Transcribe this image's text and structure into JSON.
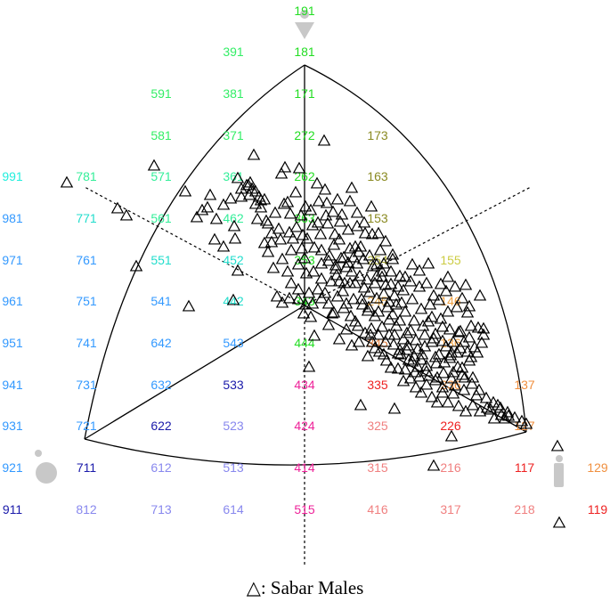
{
  "chart_data": {
    "type": "scatter",
    "title": "",
    "legend": {
      "symbol": "open triangle",
      "text": "△: Sabar Males",
      "placement": "bottom-center"
    },
    "grid_labels": [
      {
        "t": "191",
        "c": "#22dd22"
      },
      {
        "t": "391",
        "c": "#33ee66"
      },
      {
        "t": "181",
        "c": "#22dd22"
      },
      {
        "t": "591",
        "c": "#33ee66"
      },
      {
        "t": "381",
        "c": "#33ee66"
      },
      {
        "t": "171",
        "c": "#22dd22"
      },
      {
        "t": "581",
        "c": "#33ee66"
      },
      {
        "t": "371",
        "c": "#33ee66"
      },
      {
        "t": "272",
        "c": "#22dd22"
      },
      {
        "t": "173",
        "c": "#8a8a22"
      },
      {
        "t": "991",
        "c": "#22eedd"
      },
      {
        "t": "781",
        "c": "#33ee99"
      },
      {
        "t": "571",
        "c": "#33ee99"
      },
      {
        "t": "361",
        "c": "#33ee99"
      },
      {
        "t": "262",
        "c": "#22dd22"
      },
      {
        "t": "163",
        "c": "#8a8a22"
      },
      {
        "t": "981",
        "c": "#3399ff"
      },
      {
        "t": "771",
        "c": "#22ddcc"
      },
      {
        "t": "561",
        "c": "#33ee99"
      },
      {
        "t": "462",
        "c": "#33ee99"
      },
      {
        "t": "363",
        "c": "#22dd22"
      },
      {
        "t": "153",
        "c": "#8a8a22"
      },
      {
        "t": "971",
        "c": "#3399ff"
      },
      {
        "t": "761",
        "c": "#3399ff"
      },
      {
        "t": "551",
        "c": "#22ddcc"
      },
      {
        "t": "452",
        "c": "#22ddcc"
      },
      {
        "t": "353",
        "c": "#22dd22"
      },
      {
        "t": "254",
        "c": "#aaaa33"
      },
      {
        "t": "155",
        "c": "#cccc44"
      },
      {
        "t": "961",
        "c": "#3399ff"
      },
      {
        "t": "751",
        "c": "#3399ff"
      },
      {
        "t": "541",
        "c": "#3399ff"
      },
      {
        "t": "442",
        "c": "#22ddcc"
      },
      {
        "t": "343",
        "c": "#22dd22"
      },
      {
        "t": "245",
        "c": "#e0a040"
      },
      {
        "t": "146",
        "c": "#f0a040"
      },
      {
        "t": "951",
        "c": "#3399ff"
      },
      {
        "t": "741",
        "c": "#3399ff"
      },
      {
        "t": "642",
        "c": "#3399ff"
      },
      {
        "t": "543",
        "c": "#3399ff"
      },
      {
        "t": "444",
        "c": "#22dd22"
      },
      {
        "t": "345",
        "c": "#e08040"
      },
      {
        "t": "136",
        "c": "#f0a040"
      },
      {
        "t": "941",
        "c": "#3399ff"
      },
      {
        "t": "731",
        "c": "#3399ff"
      },
      {
        "t": "632",
        "c": "#3399ff"
      },
      {
        "t": "533",
        "c": "#1a1aaa"
      },
      {
        "t": "434",
        "c": "#ee2299"
      },
      {
        "t": "335",
        "c": "#ee2222"
      },
      {
        "t": "236",
        "c": "#f09040"
      },
      {
        "t": "137",
        "c": "#f09040"
      },
      {
        "t": "931",
        "c": "#3399ff"
      },
      {
        "t": "721",
        "c": "#3399ff"
      },
      {
        "t": "622",
        "c": "#1a1aaa"
      },
      {
        "t": "523",
        "c": "#8888ee"
      },
      {
        "t": "424",
        "c": "#ee2299"
      },
      {
        "t": "325",
        "c": "#f08080"
      },
      {
        "t": "226",
        "c": "#ee2222"
      },
      {
        "t": "127",
        "c": "#f09040"
      },
      {
        "t": "921",
        "c": "#3399ff"
      },
      {
        "t": "711",
        "c": "#1a1aaa"
      },
      {
        "t": "612",
        "c": "#8888ee"
      },
      {
        "t": "513",
        "c": "#8888ee"
      },
      {
        "t": "414",
        "c": "#ee2299"
      },
      {
        "t": "315",
        "c": "#f08080"
      },
      {
        "t": "216",
        "c": "#f08080"
      },
      {
        "t": "117",
        "c": "#ee2222"
      },
      {
        "t": "129",
        "c": "#f09040"
      },
      {
        "t": "911",
        "c": "#1a1aaa"
      },
      {
        "t": "812",
        "c": "#8888ee"
      },
      {
        "t": "713",
        "c": "#8888ee"
      },
      {
        "t": "614",
        "c": "#8888ee"
      },
      {
        "t": "515",
        "c": "#ee2299"
      },
      {
        "t": "416",
        "c": "#f08080"
      },
      {
        "t": "317",
        "c": "#f08080"
      },
      {
        "t": "218",
        "c": "#f08080"
      },
      {
        "t": "119",
        "c": "#ee2222"
      }
    ],
    "points": [
      [
        75,
        205
      ],
      [
        132,
        234
      ],
      [
        142,
        242
      ],
      [
        153,
        299
      ],
      [
        173,
        186
      ],
      [
        208,
        215
      ],
      [
        212,
        344
      ],
      [
        236,
        219
      ],
      [
        241,
        269
      ],
      [
        251,
        230
      ],
      [
        264,
        268
      ],
      [
        267,
        304
      ],
      [
        262,
        337
      ],
      [
        267,
        200
      ],
      [
        271,
        212
      ],
      [
        280,
        219
      ],
      [
        285,
        174
      ],
      [
        293,
        225
      ],
      [
        297,
        273
      ],
      [
        289,
        246
      ],
      [
        301,
        251
      ],
      [
        305,
        272
      ],
      [
        309,
        239
      ],
      [
        313,
        257
      ],
      [
        317,
        291
      ],
      [
        316,
        195
      ],
      [
        320,
        188
      ],
      [
        323,
        227
      ],
      [
        326,
        240
      ],
      [
        329,
        268
      ],
      [
        332,
        216
      ],
      [
        336,
        189
      ],
      [
        338,
        242
      ],
      [
        340,
        264
      ],
      [
        342,
        290
      ],
      [
        344,
        307
      ],
      [
        347,
        329
      ],
      [
        349,
        236
      ],
      [
        351,
        253
      ],
      [
        353,
        278
      ],
      [
        356,
        206
      ],
      [
        358,
        226
      ],
      [
        360,
        263
      ],
      [
        361,
        296
      ],
      [
        364,
        158
      ],
      [
        365,
        213
      ],
      [
        366,
        242
      ],
      [
        368,
        251
      ],
      [
        370,
        287
      ],
      [
        372,
        316
      ],
      [
        374,
        238
      ],
      [
        376,
        263
      ],
      [
        377,
        302
      ],
      [
        379,
        333
      ],
      [
        381,
        269
      ],
      [
        382,
        249
      ],
      [
        384,
        241
      ],
      [
        386,
        289
      ],
      [
        387,
        318
      ],
      [
        389,
        300
      ],
      [
        391,
        258
      ],
      [
        393,
        279
      ],
      [
        395,
        305
      ],
      [
        397,
        336
      ],
      [
        399,
        361
      ],
      [
        401,
        254
      ],
      [
        403,
        283
      ],
      [
        404,
        310
      ],
      [
        406,
        336
      ],
      [
        408,
        291
      ],
      [
        410,
        262
      ],
      [
        412,
        314
      ],
      [
        414,
        345
      ],
      [
        416,
        376
      ],
      [
        418,
        263
      ],
      [
        419,
        299
      ],
      [
        421,
        318
      ],
      [
        423,
        335
      ],
      [
        425,
        376
      ],
      [
        427,
        281
      ],
      [
        429,
        305
      ],
      [
        431,
        296
      ],
      [
        433,
        320
      ],
      [
        435,
        345
      ],
      [
        437,
        359
      ],
      [
        439,
        319
      ],
      [
        441,
        286
      ],
      [
        443,
        332
      ],
      [
        445,
        366
      ],
      [
        447,
        397
      ],
      [
        449,
        310
      ],
      [
        451,
        340
      ],
      [
        453,
        326
      ],
      [
        455,
        350
      ],
      [
        457,
        374
      ],
      [
        459,
        404
      ],
      [
        461,
        316
      ],
      [
        463,
        336
      ],
      [
        465,
        360
      ],
      [
        467,
        382
      ],
      [
        469,
        412
      ],
      [
        471,
        322
      ],
      [
        473,
        347
      ],
      [
        475,
        366
      ],
      [
        477,
        389
      ],
      [
        479,
        411
      ],
      [
        481,
        296
      ],
      [
        483,
        342
      ],
      [
        485,
        356
      ],
      [
        487,
        380
      ],
      [
        489,
        401
      ],
      [
        491,
        424
      ],
      [
        493,
        337
      ],
      [
        495,
        358
      ],
      [
        497,
        383
      ],
      [
        499,
        407
      ],
      [
        501,
        327
      ],
      [
        503,
        350
      ],
      [
        505,
        370
      ],
      [
        507,
        396
      ],
      [
        509,
        418
      ],
      [
        511,
        433
      ],
      [
        513,
        345
      ],
      [
        515,
        373
      ],
      [
        517,
        391
      ],
      [
        519,
        413
      ],
      [
        521,
        438
      ],
      [
        523,
        320
      ],
      [
        525,
        351
      ],
      [
        527,
        379
      ],
      [
        529,
        401
      ],
      [
        531,
        424
      ],
      [
        535,
        444
      ],
      [
        539,
        332
      ],
      [
        543,
        369
      ],
      [
        547,
        458
      ],
      [
        551,
        460
      ],
      [
        555,
        470
      ],
      [
        559,
        455
      ],
      [
        563,
        466
      ],
      [
        567,
        470
      ],
      [
        571,
        467
      ],
      [
        543,
        376
      ],
      [
        536,
        396
      ],
      [
        533,
        390
      ],
      [
        527,
        405
      ],
      [
        519,
        421
      ],
      [
        507,
        425
      ],
      [
        497,
        435
      ],
      [
        489,
        427
      ],
      [
        479,
        417
      ],
      [
        471,
        423
      ],
      [
        463,
        406
      ],
      [
        453,
        428
      ],
      [
        447,
        414
      ],
      [
        439,
        413
      ],
      [
        431,
        398
      ],
      [
        421,
        391
      ],
      [
        413,
        400
      ],
      [
        403,
        384
      ],
      [
        395,
        388
      ],
      [
        389,
        370
      ],
      [
        381,
        381
      ],
      [
        375,
        351
      ],
      [
        369,
        365
      ],
      [
        361,
        335
      ],
      [
        351,
        341
      ],
      [
        341,
        352
      ],
      [
        335,
        336
      ],
      [
        327,
        318
      ],
      [
        323,
        305
      ],
      [
        317,
        340
      ],
      [
        311,
        333
      ],
      [
        307,
        301
      ],
      [
        301,
        283
      ],
      [
        297,
        224
      ],
      [
        291,
        221
      ],
      [
        287,
        229
      ],
      [
        281,
        205
      ],
      [
        277,
        208
      ],
      [
        271,
        221
      ],
      [
        263,
        254
      ],
      [
        259,
        223
      ],
      [
        251,
        277
      ],
      [
        243,
        246
      ],
      [
        233,
        233
      ],
      [
        227,
        236
      ],
      [
        221,
        244
      ],
      [
        405,
        455
      ],
      [
        443,
        459
      ],
      [
        487,
        523
      ],
      [
        507,
        490
      ],
      [
        591,
        476
      ],
      [
        626,
        501
      ],
      [
        628,
        587
      ],
      [
        347,
        412
      ],
      [
        349,
        356
      ],
      [
        353,
        377
      ],
      [
        357,
        325
      ],
      [
        361,
        313
      ],
      [
        365,
        329
      ],
      [
        369,
        341
      ],
      [
        373,
        352
      ],
      [
        377,
        298
      ],
      [
        381,
        316
      ],
      [
        385,
        327
      ],
      [
        389,
        341
      ],
      [
        393,
        318
      ],
      [
        397,
        289
      ],
      [
        401,
        296
      ],
      [
        405,
        277
      ],
      [
        409,
        323
      ],
      [
        413,
        349
      ],
      [
        417,
        369
      ],
      [
        421,
        355
      ],
      [
        425,
        350
      ],
      [
        429,
        367
      ],
      [
        433,
        384
      ],
      [
        437,
        376
      ],
      [
        441,
        353
      ],
      [
        445,
        342
      ],
      [
        449,
        360
      ],
      [
        453,
        381
      ],
      [
        457,
        393
      ],
      [
        461,
        371
      ],
      [
        465,
        400
      ],
      [
        469,
        392
      ],
      [
        473,
        404
      ],
      [
        477,
        376
      ],
      [
        481,
        361
      ],
      [
        485,
        384
      ],
      [
        489,
        375
      ],
      [
        493,
        398
      ],
      [
        497,
        367
      ],
      [
        501,
        389
      ],
      [
        505,
        402
      ],
      [
        509,
        384
      ],
      [
        513,
        396
      ],
      [
        517,
        372
      ],
      [
        521,
        384
      ],
      [
        525,
        395
      ],
      [
        529,
        366
      ],
      [
        537,
        368
      ],
      [
        541,
        385
      ],
      [
        399,
        318
      ],
      [
        407,
        342
      ],
      [
        415,
        328
      ],
      [
        423,
        310
      ],
      [
        431,
        330
      ],
      [
        439,
        305
      ],
      [
        447,
        322
      ],
      [
        455,
        311
      ],
      [
        463,
        297
      ],
      [
        471,
        304
      ],
      [
        479,
        318
      ],
      [
        487,
        332
      ],
      [
        495,
        319
      ],
      [
        503,
        311
      ],
      [
        511,
        322
      ],
      [
        519,
        335
      ],
      [
        527,
        344
      ],
      [
        393,
        226
      ],
      [
        401,
        239
      ],
      [
        409,
        250
      ],
      [
        417,
        232
      ],
      [
        425,
        262
      ],
      [
        433,
        271
      ],
      [
        441,
        291
      ],
      [
        395,
        211
      ],
      [
        379,
        224
      ],
      [
        367,
        228
      ],
      [
        357,
        250
      ],
      [
        343,
        232
      ],
      [
        333,
        255
      ],
      [
        325,
        261
      ],
      [
        315,
        269
      ],
      [
        305,
        262
      ],
      [
        299,
        248
      ],
      [
        293,
        233
      ],
      [
        287,
        215
      ],
      [
        283,
        212
      ],
      [
        279,
        208
      ],
      [
        319,
        229
      ],
      [
        327,
        281
      ],
      [
        335,
        297
      ],
      [
        339,
        279
      ],
      [
        345,
        268
      ],
      [
        375,
        275
      ],
      [
        383,
        290
      ],
      [
        391,
        295
      ],
      [
        399,
        277
      ],
      [
        415,
        287
      ],
      [
        423,
        297
      ],
      [
        429,
        311
      ],
      [
        437,
        339
      ],
      [
        443,
        376
      ],
      [
        449,
        393
      ],
      [
        455,
        415
      ],
      [
        461,
        425
      ],
      [
        467,
        435
      ],
      [
        473,
        441
      ],
      [
        479,
        432
      ],
      [
        485,
        446
      ],
      [
        491,
        452
      ],
      [
        497,
        441
      ],
      [
        503,
        452
      ],
      [
        509,
        442
      ],
      [
        515,
        456
      ],
      [
        523,
        462
      ],
      [
        531,
        455
      ],
      [
        539,
        462
      ],
      [
        325,
        335
      ],
      [
        335,
        325
      ],
      [
        343,
        342
      ],
      [
        352,
        305
      ],
      [
        361,
        281
      ],
      [
        369,
        293
      ],
      [
        378,
        309
      ],
      [
        386,
        346
      ],
      [
        394,
        355
      ],
      [
        402,
        366
      ],
      [
        410,
        374
      ],
      [
        418,
        384
      ],
      [
        426,
        395
      ],
      [
        434,
        405
      ],
      [
        442,
        387
      ],
      [
        450,
        398
      ],
      [
        458,
        388
      ],
      [
        466,
        418
      ],
      [
        474,
        398
      ],
      [
        482,
        422
      ],
      [
        490,
        408
      ],
      [
        498,
        419
      ],
      [
        506,
        399
      ],
      [
        514,
        412
      ],
      [
        522,
        424
      ],
      [
        530,
        431
      ],
      [
        538,
        438
      ],
      [
        546,
        447
      ],
      [
        554,
        452
      ],
      [
        562,
        458
      ],
      [
        570,
        463
      ],
      [
        578,
        469
      ],
      [
        586,
        473
      ]
    ]
  }
}
